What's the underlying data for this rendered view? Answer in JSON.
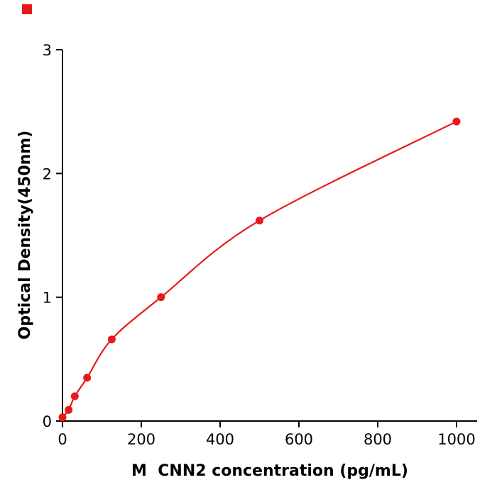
{
  "page": {
    "background": "#ffffff"
  },
  "corner_mark": {
    "color": "#e8191c"
  },
  "chart_data": {
    "type": "scatter",
    "title": "",
    "xlabel": "M  CNN2 concentration (pg/mL)",
    "ylabel": "Optical Density(450nm)",
    "x": [
      0,
      15.6,
      31.2,
      62.5,
      125,
      250,
      500,
      1000
    ],
    "y": [
      0.03,
      0.09,
      0.2,
      0.35,
      0.66,
      1.0,
      1.62,
      2.42
    ],
    "curve": "smooth-through-points",
    "xlim": [
      0,
      1050
    ],
    "ylim": [
      0,
      3
    ],
    "xticks": [
      0,
      200,
      400,
      600,
      800,
      1000
    ],
    "yticks": [
      0,
      1,
      2,
      3
    ],
    "marker_color": "#e8191c",
    "line_color": "#e8191c",
    "axis_color": "#000000",
    "grid": false,
    "legend": null
  }
}
